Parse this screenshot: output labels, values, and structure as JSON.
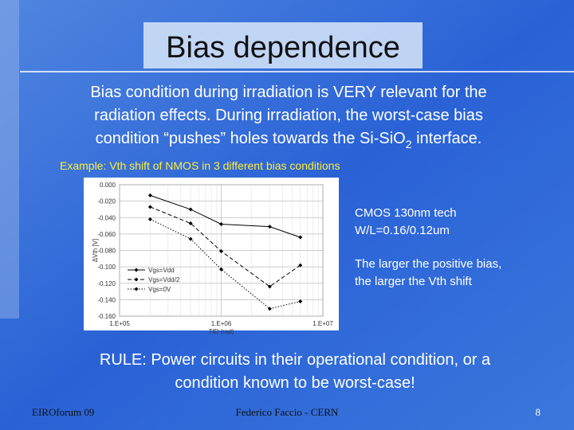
{
  "title": "Bias dependence",
  "body_lines": [
    "Bias condition during irradiation is VERY relevant for the",
    "radiation effects. During irradiation, the worst-case bias"
  ],
  "body_last": {
    "before": "condition “pushes” holes towards the Si-SiO",
    "sub": "2",
    "after": " interface."
  },
  "example": "Example: Vth shift of NMOS in 3 different bias conditions",
  "notes": [
    "CMOS 130nm tech",
    "W/L=0.16/0.12um",
    "The larger the positive bias,",
    "the larger the Vth shift"
  ],
  "rule_lines": [
    "RULE: Power circuits in their operational condition, or a",
    "condition known to be worst-case!"
  ],
  "footer": {
    "left": "EIROforum 09",
    "center": "Federico Faccio - CERN",
    "right": "8"
  },
  "chart_data": {
    "type": "line",
    "x_label": "TID (rad)",
    "y_label": "ΔVth [V]",
    "x_log": true,
    "xlim": [
      100000,
      10000000
    ],
    "xticks": [
      {
        "value": 100000,
        "label": "1.E+05"
      },
      {
        "value": 1000000,
        "label": "1.E+06"
      },
      {
        "value": 10000000,
        "label": "1.E+07"
      }
    ],
    "ylim": [
      -0.16,
      0
    ],
    "yticks": [
      {
        "value": 0,
        "label": "0.000"
      },
      {
        "value": -0.02,
        "label": "-0.020"
      },
      {
        "value": -0.04,
        "label": "-0.040"
      },
      {
        "value": -0.06,
        "label": "-0.060"
      },
      {
        "value": -0.08,
        "label": "-0.080"
      },
      {
        "value": -0.1,
        "label": "-0.100"
      },
      {
        "value": -0.12,
        "label": "-0.120"
      },
      {
        "value": -0.14,
        "label": "-0.140"
      },
      {
        "value": -0.16,
        "label": "-0.160"
      }
    ],
    "grid": true,
    "x": [
      200000,
      500000,
      1000000,
      3000000,
      6000000
    ],
    "series": [
      {
        "name": "Vgs=Vdd",
        "color": "#000000",
        "style": "solid",
        "values": [
          -0.013,
          -0.03,
          -0.048,
          -0.051,
          -0.064
        ]
      },
      {
        "name": "Vgs=Vdd/2",
        "color": "#000000",
        "style": "dashed",
        "values": [
          -0.027,
          -0.047,
          -0.081,
          -0.124,
          -0.098
        ]
      },
      {
        "name": "Vgs=0V",
        "color": "#000000",
        "style": "dotted",
        "values": [
          -0.042,
          -0.066,
          -0.103,
          -0.151,
          -0.142
        ]
      }
    ]
  }
}
